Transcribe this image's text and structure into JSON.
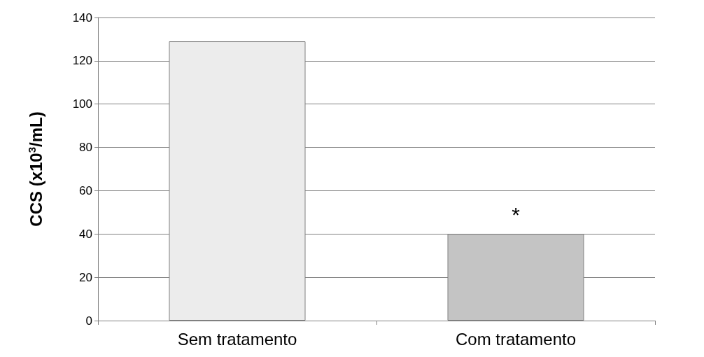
{
  "chart_data": {
    "type": "bar",
    "ylabel": "CCS (x10$^{3}$/mL)",
    "categories": [
      "Sem tratamento",
      "Com tratamento"
    ],
    "values": [
      129,
      40
    ],
    "colors": [
      "#ececec",
      "#c4c4c4"
    ],
    "ylim": [
      0,
      140
    ],
    "yticks": [
      0,
      20,
      40,
      60,
      80,
      100,
      120,
      140
    ],
    "grid": "y",
    "annotations": [
      "*"
    ]
  }
}
